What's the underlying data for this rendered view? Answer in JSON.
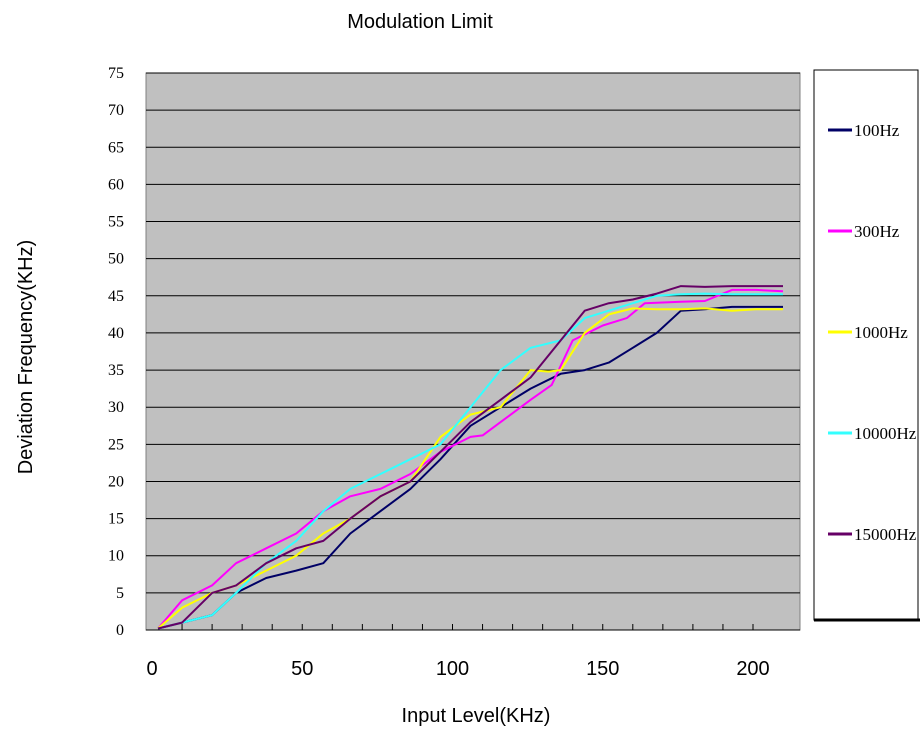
{
  "chart_data": {
    "type": "line",
    "title": "Modulation Limit",
    "xlabel": "Input Level(KHz)",
    "ylabel": "Deviation Frequency(KHz)",
    "xlim": [
      0,
      210
    ],
    "ylim": [
      0,
      75
    ],
    "x_ticks": [
      0,
      50,
      100,
      150,
      200
    ],
    "y_ticks": [
      0,
      5,
      10,
      15,
      20,
      25,
      30,
      35,
      40,
      45,
      50,
      55,
      60,
      65,
      70,
      75
    ],
    "grid": "horizontal",
    "plot_background": "#c0c0c0",
    "legend_position": "right",
    "series": [
      {
        "name": "100Hz",
        "color": "#000066",
        "x": [
          2,
          10,
          20,
          28,
          38,
          48,
          57,
          66,
          76,
          86,
          96,
          106,
          116,
          126,
          136,
          144,
          152,
          160,
          168,
          176,
          184,
          193,
          201,
          210
        ],
        "y": [
          0.2,
          1,
          2,
          5,
          7,
          8,
          9,
          13,
          16,
          19,
          23,
          27.5,
          30,
          32.5,
          34.5,
          35,
          36,
          38,
          40,
          43,
          43.2,
          43.5,
          43.5,
          43.5
        ]
      },
      {
        "name": "300Hz",
        "color": "#ff00ff",
        "x": [
          2,
          10,
          20,
          28,
          38,
          48,
          57,
          66,
          76,
          86,
          96,
          106,
          110,
          116,
          126,
          133,
          140,
          150,
          158,
          164,
          176,
          184,
          193,
          201,
          210
        ],
        "y": [
          0.2,
          4,
          6,
          9,
          11,
          13,
          16,
          18,
          19,
          21,
          24,
          26,
          26.2,
          28,
          31,
          33,
          39,
          41,
          42,
          44,
          44.2,
          44.3,
          45.8,
          45.8,
          45.6
        ]
      },
      {
        "name": "1000Hz",
        "color": "#ffff00",
        "x": [
          2,
          10,
          20,
          28,
          38,
          48,
          57,
          66,
          76,
          86,
          96,
          106,
          116,
          126,
          132,
          136,
          144,
          152,
          160,
          168,
          176,
          184,
          193,
          201,
          210
        ],
        "y": [
          0.2,
          3,
          5,
          6,
          8,
          10,
          13,
          15,
          18,
          20,
          26,
          29,
          30,
          35,
          34.8,
          35,
          40,
          42.5,
          43.3,
          43.2,
          43.2,
          43.3,
          43,
          43.2,
          43.2
        ]
      },
      {
        "name": "10000Hz",
        "color": "#33ffff",
        "x": [
          2,
          10,
          20,
          28,
          38,
          48,
          57,
          66,
          76,
          86,
          96,
          106,
          116,
          126,
          136,
          144,
          152,
          160,
          168,
          176,
          184,
          193,
          201,
          210
        ],
        "y": [
          0.2,
          1,
          2,
          5,
          9,
          12,
          16,
          19,
          21,
          23,
          25,
          30,
          35,
          38,
          39,
          42,
          43,
          44,
          45,
          45.2,
          45.3,
          45.2,
          45.2,
          45.2
        ]
      },
      {
        "name": "15000Hz",
        "color": "#660066",
        "x": [
          2,
          10,
          20,
          28,
          38,
          48,
          57,
          66,
          76,
          86,
          96,
          106,
          116,
          126,
          136,
          144,
          152,
          160,
          168,
          176,
          184,
          193,
          201,
          210
        ],
        "y": [
          0.2,
          1,
          5,
          6,
          9,
          11,
          12,
          15,
          18,
          20,
          24,
          28,
          31,
          34,
          39,
          43,
          44,
          44.5,
          45.3,
          46.3,
          46.2,
          46.3,
          46.3,
          46.3
        ]
      }
    ]
  }
}
